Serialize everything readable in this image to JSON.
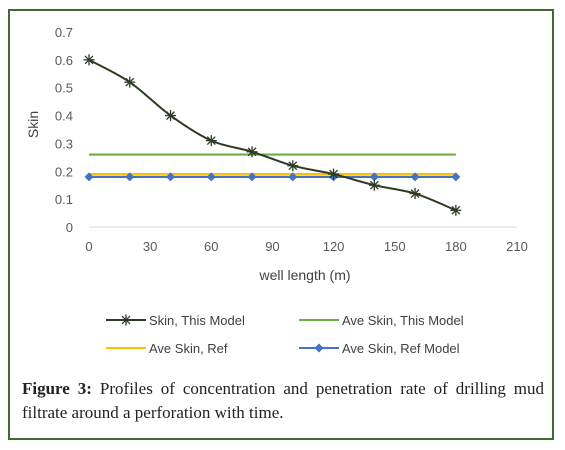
{
  "figure": {
    "label": "Figure 3:",
    "caption": "Profiles of concentration and penetration rate of drilling mud filtrate around a perforation with time."
  },
  "chart_data": {
    "type": "line",
    "xlabel": "well length (m)",
    "ylabel": "Skin",
    "xlim": [
      0,
      210
    ],
    "ylim": [
      0,
      0.7
    ],
    "x_ticks": [
      0,
      30,
      60,
      90,
      120,
      150,
      180,
      210
    ],
    "y_ticks": [
      0,
      0.1,
      0.2,
      0.3,
      0.4,
      0.5,
      0.6,
      0.7
    ],
    "x_tick_labels": [
      "0",
      "30",
      "60",
      "90",
      "120",
      "150",
      "180",
      "210"
    ],
    "y_tick_labels": [
      "0",
      "0.1",
      "0.2",
      "0.3",
      "0.4",
      "0.5",
      "0.6",
      "0.7"
    ],
    "grid": false,
    "legend_position": "bottom",
    "series": [
      {
        "name": "Skin, This Model",
        "color": "#2e3b24",
        "marker": "star",
        "smooth": true,
        "x": [
          0,
          20,
          40,
          60,
          80,
          100,
          120,
          140,
          160,
          180
        ],
        "y": [
          0.6,
          0.52,
          0.4,
          0.31,
          0.27,
          0.22,
          0.19,
          0.15,
          0.12,
          0.06
        ]
      },
      {
        "name": "Ave Skin, This Model",
        "color": "#70ad47",
        "marker": "none",
        "smooth": false,
        "x": [
          0,
          180
        ],
        "y": [
          0.26,
          0.26
        ]
      },
      {
        "name": "Ave Skin, Ref",
        "color": "#ffc000",
        "marker": "none",
        "smooth": false,
        "x": [
          0,
          180
        ],
        "y": [
          0.19,
          0.19
        ]
      },
      {
        "name": "Ave Skin, Ref Model",
        "color": "#4472c4",
        "marker": "diamond",
        "smooth": false,
        "x": [
          0,
          20,
          40,
          60,
          80,
          100,
          120,
          140,
          160,
          180
        ],
        "y": [
          0.18,
          0.18,
          0.18,
          0.18,
          0.18,
          0.18,
          0.18,
          0.18,
          0.18,
          0.18
        ]
      }
    ]
  }
}
